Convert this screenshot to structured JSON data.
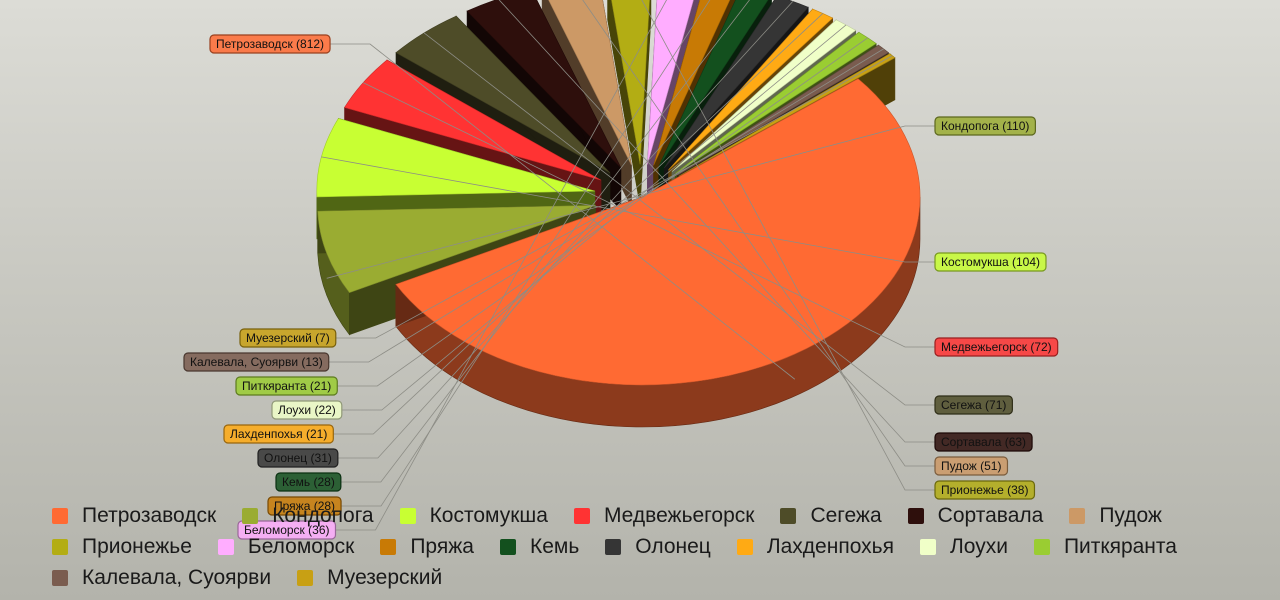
{
  "chart_data": {
    "type": "pie",
    "title": "",
    "unit_format": "{name} ({value})",
    "slices": [
      {
        "name": "Петрозаводск",
        "value": 812,
        "color": "#ff6a33"
      },
      {
        "name": "Кондопога",
        "value": 110,
        "color": "#9aac32"
      },
      {
        "name": "Костомукша",
        "value": 104,
        "color": "#c8ff33"
      },
      {
        "name": "Медвежьегорск",
        "value": 72,
        "color": "#ff3333"
      },
      {
        "name": "Сегежа",
        "value": 71,
        "color": "#4e4c28"
      },
      {
        "name": "Сортавала",
        "value": 63,
        "color": "#2e0f0c"
      },
      {
        "name": "Пудож",
        "value": 51,
        "color": "#cc9966"
      },
      {
        "name": "Прионежье",
        "value": 38,
        "color": "#b3ad14"
      },
      {
        "name": "Беломорск",
        "value": 36,
        "color": "#ffadff"
      },
      {
        "name": "Пряжа",
        "value": 28,
        "color": "#c87a05"
      },
      {
        "name": "Кемь",
        "value": 28,
        "color": "#13501e"
      },
      {
        "name": "Олонец",
        "value": 31,
        "color": "#353535"
      },
      {
        "name": "Лахденпохья",
        "value": 21,
        "color": "#ffaa14"
      },
      {
        "name": "Лоухи",
        "value": 22,
        "color": "#f0ffc8"
      },
      {
        "name": "Питкяранта",
        "value": 21,
        "color": "#9acd32"
      },
      {
        "name": "Калевала, Суоярви",
        "value": 13,
        "color": "#7a5c4f"
      },
      {
        "name": "Муезерский",
        "value": 7,
        "color": "#c8a014"
      }
    ],
    "legend_position": "bottom"
  }
}
